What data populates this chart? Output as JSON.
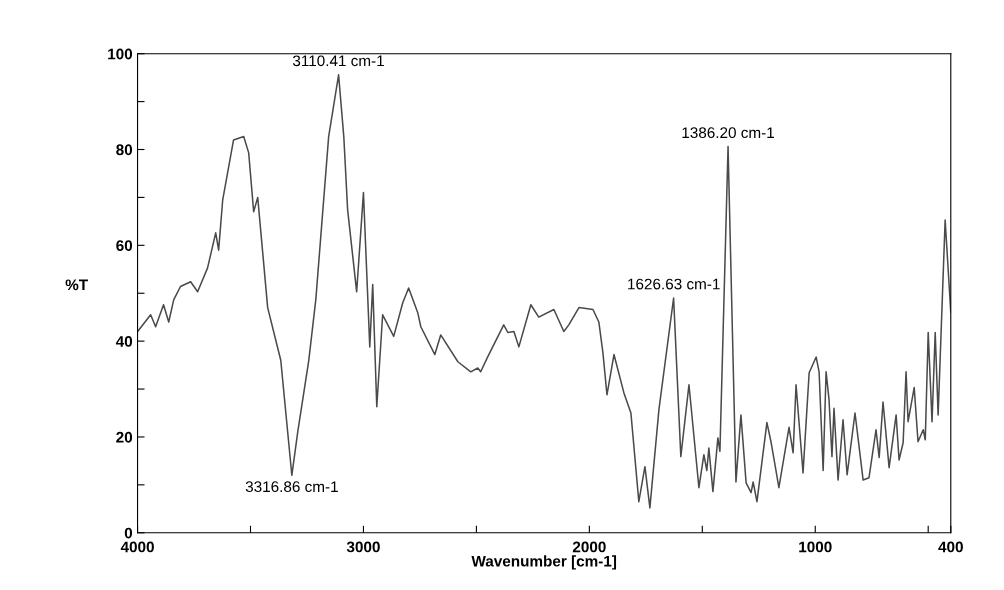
{
  "chart_data": {
    "type": "line",
    "xlabel": "Wavenumber [cm-1]",
    "ylabel": "%T",
    "xlim": [
      4000,
      400
    ],
    "ylim": [
      0,
      100
    ],
    "xticks": [
      4000,
      {
        "value": 3500,
        "label": null
      },
      3000,
      {
        "value": 2500,
        "label": null
      },
      2000,
      {
        "value": 1500,
        "label": null
      },
      1000,
      {
        "value": 500,
        "label": null
      },
      400
    ],
    "yticks": [
      0,
      {
        "value": 10,
        "label": null
      },
      20,
      {
        "value": 30,
        "label": null
      },
      40,
      {
        "value": 50,
        "label": null
      },
      60,
      {
        "value": 70,
        "label": null
      },
      80,
      {
        "value": 90,
        "label": null
      },
      100
    ],
    "grid": false,
    "marker": "none",
    "line_style": "solid",
    "series": [
      {
        "color": "#4a4a4a",
        "x": [
          4000,
          3942,
          3920,
          3885,
          3862,
          3840,
          3810,
          3765,
          3734,
          3690,
          3654,
          3641,
          3623,
          3575,
          3530,
          3508,
          3486,
          3468,
          3424,
          3366,
          3317,
          3291,
          3242,
          3211,
          3154,
          3110,
          3087,
          3070,
          3030,
          3000,
          2972,
          2959,
          2941,
          2915,
          2866,
          2826,
          2800,
          2760,
          2746,
          2684,
          2658,
          2582,
          2525,
          2494,
          2481,
          2450,
          2379,
          2361,
          2334,
          2312,
          2259,
          2224,
          2157,
          2113,
          2091,
          2046,
          1984,
          1958,
          1940,
          1922,
          1891,
          1847,
          1816,
          1781,
          1754,
          1732,
          1692,
          1627,
          1595,
          1559,
          1515,
          1493,
          1480,
          1471,
          1453,
          1431,
          1422,
          1386,
          1351,
          1329,
          1306,
          1284,
          1275,
          1258,
          1214,
          1196,
          1174,
          1161,
          1116,
          1098,
          1085,
          1054,
          1027,
          996,
          983,
          965,
          952,
          939,
          926,
          917,
          899,
          877,
          859,
          824,
          788,
          762,
          731,
          717,
          700,
          673,
          642,
          629,
          611,
          598,
          589,
          562,
          545,
          522,
          513,
          500,
          483,
          469,
          456,
          425,
          400
        ],
        "values": [
          42,
          45.5,
          43,
          47.6,
          44,
          48.6,
          51.4,
          52.4,
          50.3,
          55.3,
          62.6,
          59,
          69.5,
          82,
          82.7,
          79.3,
          67,
          70,
          47,
          36,
          12,
          21,
          36,
          48.6,
          82.7,
          95.6,
          82.7,
          67.4,
          50.3,
          71,
          38.8,
          51.8,
          26.3,
          45.5,
          41,
          48,
          51.1,
          46,
          43,
          37.2,
          41.3,
          35.7,
          33.6,
          34.4,
          33.6,
          36.7,
          43.4,
          41.8,
          42,
          38.8,
          47.6,
          45,
          46.6,
          42,
          43.4,
          47,
          46.6,
          44,
          37.6,
          28.8,
          37.2,
          29.2,
          25,
          6.5,
          13.8,
          5.2,
          25.7,
          49,
          15.9,
          30.9,
          9.4,
          16.3,
          13,
          17.7,
          8.6,
          19.8,
          17,
          80.6,
          10.6,
          24.6,
          10.4,
          8.4,
          10.6,
          6.5,
          23,
          19,
          13,
          9.4,
          22,
          16.7,
          30.9,
          12.5,
          33.4,
          36.7,
          33.6,
          13,
          33.6,
          27.8,
          15.9,
          26,
          11,
          23.6,
          12.1,
          25,
          11,
          11.5,
          21.5,
          15.7,
          27.3,
          13.6,
          24.6,
          15.2,
          18.8,
          33.6,
          23.2,
          30.3,
          19,
          21.5,
          19.4,
          41.8,
          23.2,
          41.8,
          24.6,
          65.3,
          46
        ]
      }
    ],
    "annotations": [
      {
        "text": "3110.41 cm-1",
        "x": 3110.41,
        "y": 95.6
      },
      {
        "text": "3316.86 cm-1",
        "x": 3316.86,
        "y": 12
      },
      {
        "text": "1386.20 cm-1",
        "x": 1386.2,
        "y": 80.6
      },
      {
        "text": "1626.63 cm-1",
        "x": 1626.63,
        "y": 49
      }
    ]
  }
}
